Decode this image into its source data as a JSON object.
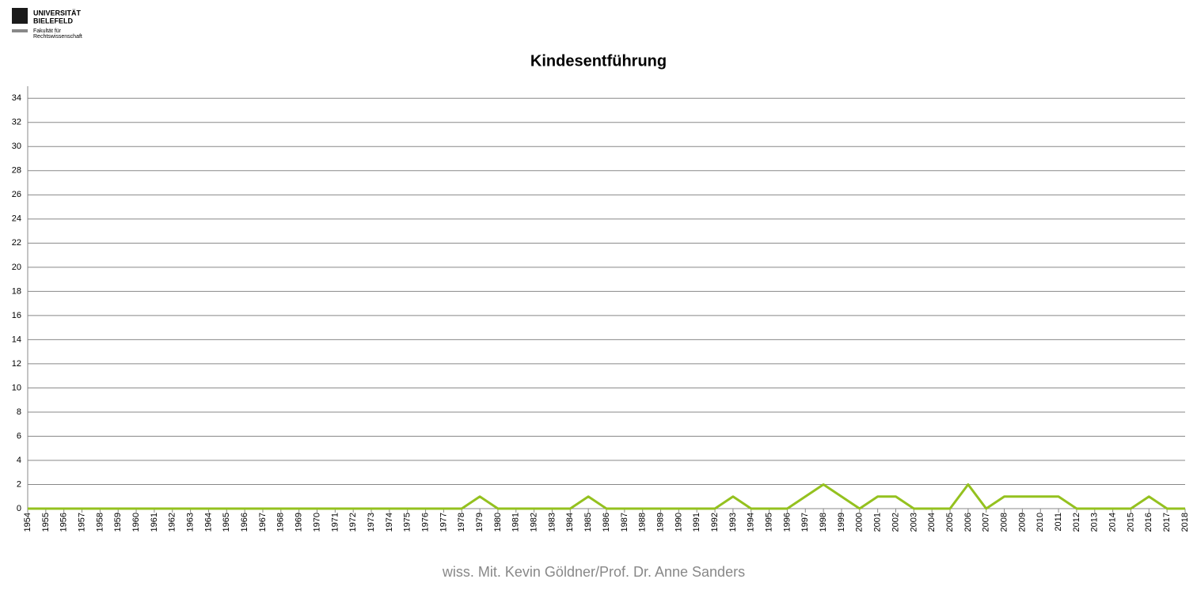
{
  "logo": {
    "line1": "UNIVERSITÄT",
    "line2": "BIELEFELD",
    "line3": "Fakultät für",
    "line4": "Rechtswissenschaft"
  },
  "footer": "wiss. Mit. Kevin Göldner/Prof.  Dr. Anne Sanders",
  "chart_data": {
    "type": "line",
    "title": "Kindesentführung",
    "x": [
      1954,
      1955,
      1956,
      1957,
      1958,
      1959,
      1960,
      1961,
      1962,
      1963,
      1964,
      1965,
      1966,
      1967,
      1968,
      1969,
      1970,
      1971,
      1972,
      1973,
      1974,
      1975,
      1976,
      1977,
      1978,
      1979,
      1980,
      1981,
      1982,
      1983,
      1984,
      1985,
      1986,
      1987,
      1988,
      1989,
      1990,
      1991,
      1992,
      1993,
      1994,
      1995,
      1996,
      1997,
      1998,
      1999,
      2000,
      2001,
      2002,
      2003,
      2004,
      2005,
      2006,
      2007,
      2008,
      2009,
      2010,
      2011,
      2012,
      2013,
      2014,
      2015,
      2016,
      2017,
      2018
    ],
    "values": [
      0,
      0,
      0,
      0,
      0,
      0,
      0,
      0,
      0,
      0,
      0,
      0,
      0,
      0,
      0,
      0,
      0,
      0,
      0,
      0,
      0,
      0,
      0,
      0,
      0,
      1,
      0,
      0,
      0,
      0,
      0,
      1,
      0,
      0,
      0,
      0,
      0,
      0,
      0,
      1,
      0,
      0,
      0,
      1,
      2,
      1,
      0,
      1,
      1,
      0,
      0,
      0,
      2,
      0,
      1,
      1,
      1,
      1,
      0,
      0,
      0,
      0,
      1,
      0,
      0
    ],
    "color": "#94c11f",
    "xlim": [
      1954,
      2018
    ],
    "ylim": [
      0,
      35
    ],
    "yticks": [
      0,
      2,
      4,
      6,
      8,
      10,
      12,
      14,
      16,
      18,
      20,
      22,
      24,
      26,
      28,
      30,
      32,
      34
    ],
    "grid": true
  }
}
